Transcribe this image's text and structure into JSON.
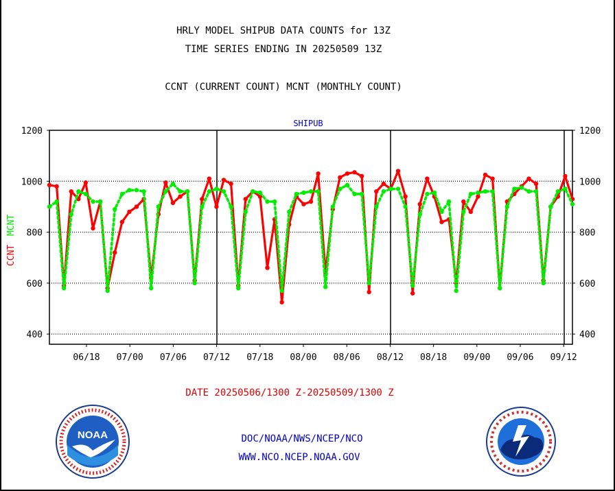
{
  "header": {
    "line1": "HRLY MODEL SHIPUB DATA COUNTS for 13Z",
    "line2": "TIME SERIES ENDING IN 20250509 13Z",
    "line3": "CCNT (CURRENT COUNT) MCNT (MONTHLY COUNT)"
  },
  "footer": {
    "date_range": "DATE 20250506/1300 Z-20250509/1300 Z",
    "org": "DOC/NOAA/NWS/NCEP/NCO",
    "url": "WWW.NCO.NCEP.NOAA.GOV"
  },
  "logos": {
    "left": "noaa-logo",
    "right": "national-weather-service-logo",
    "left_text": "NOAA"
  },
  "colors": {
    "ccnt": "#ff0000",
    "mcnt": "#00ee00",
    "text": "#000000",
    "subtitle": "#0000cc",
    "date": "#dd0000"
  },
  "chart_data": {
    "type": "line",
    "title": "SHIPUB",
    "ylabel_left": [
      "CCNT",
      "MCNT"
    ],
    "ylim": [
      360,
      1200
    ],
    "yticks": [
      400,
      600,
      800,
      1000,
      1200
    ],
    "xticks": [
      "06/18",
      "07/00",
      "07/06",
      "07/12",
      "07/18",
      "08/00",
      "08/06",
      "08/12",
      "08/18",
      "09/00",
      "09/06",
      "09/12"
    ],
    "grid": "horizontal dotted at 400, 600, 800, 1000",
    "legend": "none",
    "series": [
      {
        "name": "CCNT",
        "values": [
          985,
          980,
          590,
          960,
          930,
          995,
          815,
          920,
          580,
          720,
          840,
          880,
          900,
          930,
          620,
          870,
          995,
          915,
          940,
          960,
          610,
          930,
          1010,
          900,
          1005,
          990,
          590,
          930,
          960,
          940,
          660,
          850,
          525,
          830,
          940,
          910,
          920,
          1030,
          640,
          890,
          1015,
          1030,
          1035,
          1020,
          565,
          960,
          990,
          970,
          1040,
          940,
          560,
          910,
          1010,
          940,
          840,
          850,
          600,
          920,
          880,
          940,
          1025,
          1010,
          580,
          920,
          950,
          980,
          1010,
          990,
          610,
          900,
          940,
          1020,
          930
        ]
      },
      {
        "name": "MCNT",
        "values": [
          900,
          920,
          580,
          870,
          960,
          950,
          920,
          920,
          570,
          890,
          950,
          965,
          965,
          960,
          580,
          900,
          960,
          990,
          960,
          960,
          600,
          900,
          960,
          970,
          960,
          900,
          580,
          880,
          960,
          955,
          920,
          920,
          570,
          880,
          950,
          955,
          960,
          960,
          585,
          900,
          970,
          985,
          950,
          950,
          600,
          900,
          960,
          970,
          970,
          900,
          590,
          870,
          950,
          955,
          880,
          920,
          570,
          880,
          950,
          955,
          960,
          960,
          580,
          900,
          970,
          975,
          960,
          960,
          600,
          900,
          960,
          970,
          910
        ]
      }
    ]
  }
}
